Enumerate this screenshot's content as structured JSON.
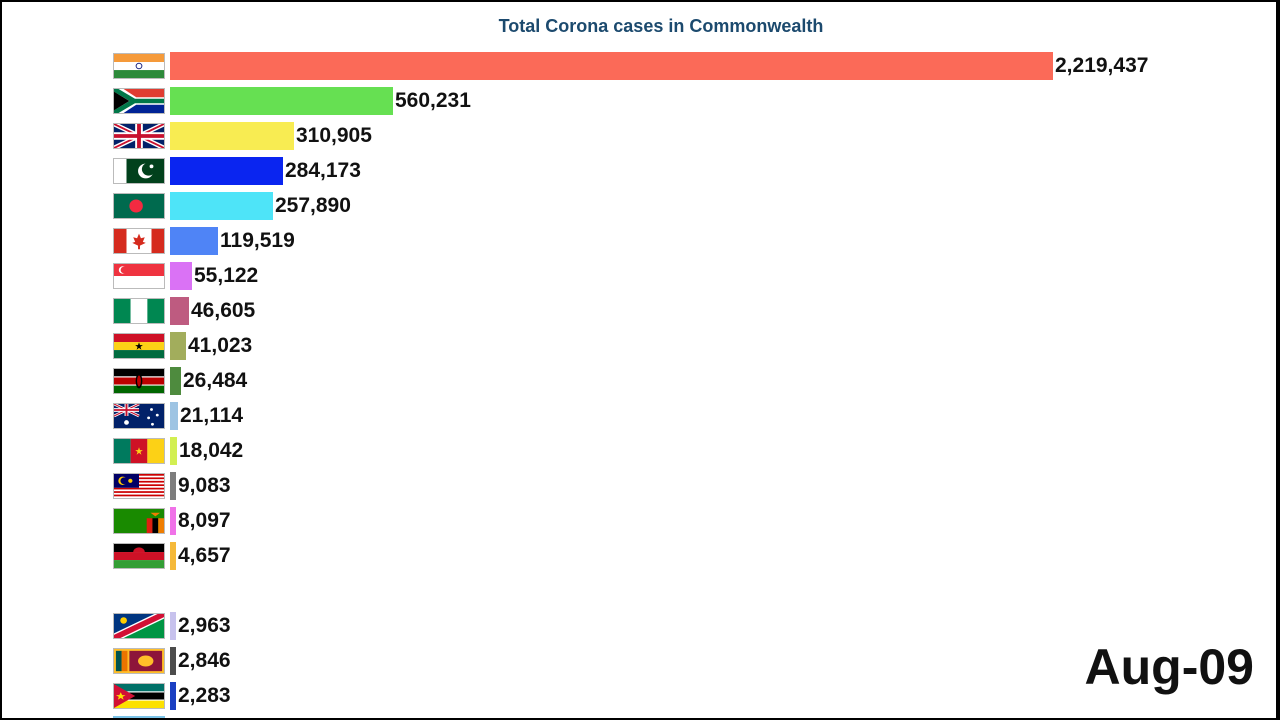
{
  "chart_data": {
    "type": "bar",
    "orientation": "horizontal",
    "title": "Total Corona cases in Commonwealth",
    "date": "Aug-09",
    "categories": [
      "1 IND",
      "2 ZAF",
      "3 UK",
      "4 PAK",
      "5 BGD",
      "6 CAN",
      "7 SGP",
      "8 NGA",
      "9 GHN",
      "10 KEN",
      "11 AUS",
      "12 CMR",
      "13 MYS",
      "14 ZMB",
      "16 MWI",
      "17 NAM",
      "18 LKA",
      "19 MOZ"
    ],
    "values": [
      2219437,
      560231,
      310905,
      284173,
      257890,
      119519,
      55122,
      46605,
      41023,
      26484,
      21114,
      18042,
      9083,
      8097,
      4657,
      2963,
      2846,
      2283
    ],
    "value_labels": [
      "2,219,437",
      "560,231",
      "310,905",
      "284,173",
      "257,890",
      "119,519",
      "55,122",
      "46,605",
      "41,023",
      "26,484",
      "21,114",
      "18,042",
      "9,083",
      "8,097",
      "4,657",
      "2,963",
      "2,846",
      "2,283"
    ],
    "colors": [
      "#fb6a58",
      "#66e052",
      "#f8ec52",
      "#0a25f0",
      "#4ee4f8",
      "#4f84f6",
      "#da72f5",
      "#be5b80",
      "#a2ad5c",
      "#4e8b3e",
      "#9ec4e3",
      "#d2ef52",
      "#7d7d7d",
      "#f072e8",
      "#f5b93a",
      "#c7c2ed",
      "#4c4c4c",
      "#1a3fc2"
    ],
    "flags": [
      "india-flag",
      "south-africa-flag",
      "uk-flag",
      "pakistan-flag",
      "bangladesh-flag",
      "canada-flag",
      "singapore-flag",
      "nigeria-flag",
      "ghana-flag",
      "kenya-flag",
      "australia-flag",
      "cameroon-flag",
      "malaysia-flag",
      "zambia-flag",
      "malawi-flag",
      "namibia-flag",
      "sri-lanka-flag",
      "mozambique-flag"
    ],
    "xlim": [
      0,
      2219437
    ],
    "grid": false,
    "legend": "none"
  }
}
